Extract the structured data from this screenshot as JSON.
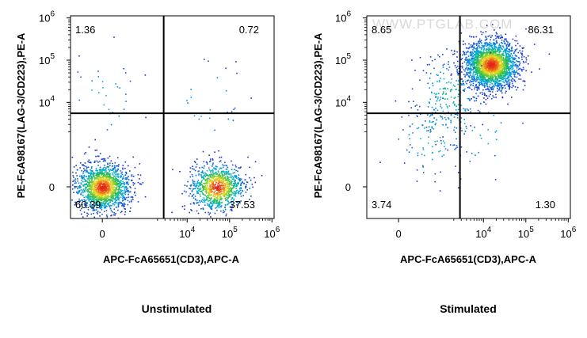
{
  "watermark": "WWW.PTGLAB.COM",
  "chart_data": [
    {
      "type": "scatter",
      "subtype": "flow-cytometry-density-plot",
      "caption": "Unstimulated",
      "xlabel": "APC-FcA65651(CD3),APC-A",
      "ylabel": "PE-FcA98167(LAG-3/CD223),PE-A",
      "x_scale": "biexponential",
      "y_scale": "biexponential",
      "x_ticks": [
        {
          "value": 0,
          "base": "0",
          "exp": ""
        },
        {
          "value": 10000,
          "base": "10",
          "exp": "4"
        },
        {
          "value": 100000,
          "base": "10",
          "exp": "5"
        },
        {
          "value": 1000000,
          "base": "10",
          "exp": "6"
        }
      ],
      "y_ticks": [
        {
          "value": 0,
          "base": "0",
          "exp": ""
        },
        {
          "value": 10000,
          "base": "10",
          "exp": "4"
        },
        {
          "value": 100000,
          "base": "10",
          "exp": "5"
        },
        {
          "value": 1000000,
          "base": "10",
          "exp": "6"
        }
      ],
      "gate": {
        "x": 2800,
        "y": 5500
      },
      "quadrants": {
        "top_left": "1.36",
        "top_right": "0.72",
        "bottom_left": "60.39",
        "bottom_right": "37.53"
      },
      "populations": [
        {
          "name": "CD3- LAG-3-",
          "center_x": 0,
          "center_y": 0,
          "fraction": 0.6039
        },
        {
          "name": "CD3+ LAG-3-",
          "center_x": 50000,
          "center_y": 0,
          "fraction": 0.3753
        },
        {
          "name": "CD3- LAG-3+",
          "center_x": 0,
          "center_y": 12000,
          "fraction": 0.0136
        },
        {
          "name": "CD3+ LAG-3+",
          "center_x": 30000,
          "center_y": 12000,
          "fraction": 0.0072
        }
      ],
      "grid": false
    },
    {
      "type": "scatter",
      "subtype": "flow-cytometry-density-plot",
      "caption": "Stimulated",
      "xlabel": "APC-FcA65651(CD3),APC-A",
      "ylabel": "PE-FcA98167(LAG-3/CD223),PE-A",
      "x_scale": "biexponential",
      "y_scale": "biexponential",
      "x_ticks": [
        {
          "value": 0,
          "base": "0",
          "exp": ""
        },
        {
          "value": 10000,
          "base": "10",
          "exp": "4"
        },
        {
          "value": 100000,
          "base": "10",
          "exp": "5"
        },
        {
          "value": 1000000,
          "base": "10",
          "exp": "6"
        }
      ],
      "y_ticks": [
        {
          "value": 0,
          "base": "0",
          "exp": ""
        },
        {
          "value": 10000,
          "base": "10",
          "exp": "4"
        },
        {
          "value": 100000,
          "base": "10",
          "exp": "5"
        },
        {
          "value": 1000000,
          "base": "10",
          "exp": "6"
        }
      ],
      "gate": {
        "x": 2800,
        "y": 5500
      },
      "quadrants": {
        "top_left": "8.65",
        "top_right": "86.31",
        "bottom_left": "3.74",
        "bottom_right": "1.30"
      },
      "populations": [
        {
          "name": "CD3+ LAG-3+",
          "center_x": 15000,
          "center_y": 80000,
          "fraction": 0.8631
        },
        {
          "name": "CD3- LAG-3+",
          "center_x": 1500,
          "center_y": 15000,
          "fraction": 0.0865
        },
        {
          "name": "CD3- LAG-3-",
          "center_x": 800,
          "center_y": 1500,
          "fraction": 0.0374
        },
        {
          "name": "CD3+ LAG-3-",
          "center_x": 8000,
          "center_y": 2500,
          "fraction": 0.013
        }
      ],
      "grid": false
    }
  ]
}
